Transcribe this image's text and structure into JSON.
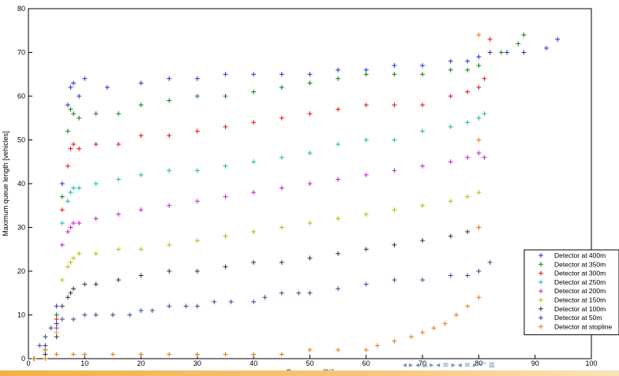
{
  "colors": {
    "400": "#1f2fd4",
    "350": "#0a7d12",
    "300": "#e01010",
    "250": "#15b5b5",
    "200": "#c21fc2",
    "150": "#b8b800",
    "100": "#303030",
    "50": "#2d4a8a",
    "stop": "#e07b00"
  },
  "chart_data": {
    "type": "scatter",
    "xlabel": "Occupancy [%]",
    "ylabel": "Maximum queue length [vehicles]",
    "xlim": [
      0,
      100
    ],
    "ylim": [
      0,
      80
    ],
    "xticks": [
      0,
      10,
      20,
      30,
      40,
      50,
      60,
      70,
      80,
      90,
      100
    ],
    "yticks": [
      0,
      10,
      20,
      30,
      40,
      50,
      60,
      70,
      80
    ],
    "xtick_labels": [
      "0",
      "10",
      "20",
      "30",
      "40",
      "50",
      "60",
      "70",
      "80",
      "90",
      "100"
    ],
    "ytick_labels": [
      "0",
      "10",
      "20",
      "30",
      "40",
      "50",
      "60",
      "70",
      "80"
    ],
    "grid": false,
    "legend_position": "bottom-right",
    "marker": "+",
    "series": [
      {
        "name": "Detector at 400m",
        "color": "#1f2fd4",
        "points": [
          [
            1,
            0
          ],
          [
            3,
            3
          ],
          [
            5,
            12
          ],
          [
            6,
            40
          ],
          [
            7,
            58
          ],
          [
            7.5,
            62
          ],
          [
            8,
            63
          ],
          [
            9,
            60
          ],
          [
            10,
            64
          ],
          [
            14,
            62
          ],
          [
            20,
            63
          ],
          [
            25,
            64
          ],
          [
            30,
            64
          ],
          [
            35,
            65
          ],
          [
            40,
            65
          ],
          [
            45,
            65
          ],
          [
            50,
            65
          ],
          [
            55,
            66
          ],
          [
            60,
            66
          ],
          [
            65,
            67
          ],
          [
            70,
            67
          ],
          [
            75,
            68
          ],
          [
            78,
            68
          ],
          [
            80,
            69
          ],
          [
            82,
            70
          ],
          [
            85,
            70
          ],
          [
            88,
            70
          ],
          [
            92,
            71
          ],
          [
            94,
            73
          ]
        ]
      },
      {
        "name": "Detector at 350m",
        "color": "#0a7d12",
        "points": [
          [
            1,
            0
          ],
          [
            3,
            2
          ],
          [
            5,
            10
          ],
          [
            6,
            37
          ],
          [
            7,
            52
          ],
          [
            7.5,
            57
          ],
          [
            8,
            56
          ],
          [
            9,
            55
          ],
          [
            12,
            56
          ],
          [
            16,
            56
          ],
          [
            20,
            58
          ],
          [
            25,
            59
          ],
          [
            30,
            60
          ],
          [
            35,
            60
          ],
          [
            40,
            61
          ],
          [
            45,
            62
          ],
          [
            50,
            63
          ],
          [
            55,
            64
          ],
          [
            60,
            65
          ],
          [
            65,
            65
          ],
          [
            70,
            65
          ],
          [
            75,
            66
          ],
          [
            78,
            66
          ],
          [
            80,
            67
          ],
          [
            84,
            70
          ],
          [
            87,
            72
          ],
          [
            88,
            74
          ]
        ]
      },
      {
        "name": "Detector at 300m",
        "color": "#e01010",
        "points": [
          [
            1,
            0
          ],
          [
            3,
            2
          ],
          [
            5,
            9
          ],
          [
            6,
            34
          ],
          [
            7,
            44
          ],
          [
            7.5,
            48
          ],
          [
            8,
            49
          ],
          [
            9,
            48
          ],
          [
            12,
            49
          ],
          [
            16,
            49
          ],
          [
            20,
            51
          ],
          [
            25,
            51
          ],
          [
            30,
            52
          ],
          [
            35,
            53
          ],
          [
            40,
            54
          ],
          [
            45,
            55
          ],
          [
            50,
            56
          ],
          [
            55,
            57
          ],
          [
            60,
            58
          ],
          [
            65,
            58
          ],
          [
            70,
            58
          ],
          [
            75,
            60
          ],
          [
            78,
            61
          ],
          [
            80,
            62
          ],
          [
            81,
            64
          ],
          [
            82,
            73
          ]
        ]
      },
      {
        "name": "Detector at 250m",
        "color": "#15b5b5",
        "points": [
          [
            1,
            0
          ],
          [
            3,
            2
          ],
          [
            5,
            8
          ],
          [
            6,
            31
          ],
          [
            7,
            36
          ],
          [
            7.5,
            38
          ],
          [
            8,
            39
          ],
          [
            9,
            39
          ],
          [
            12,
            40
          ],
          [
            16,
            41
          ],
          [
            20,
            42
          ],
          [
            25,
            43
          ],
          [
            30,
            43
          ],
          [
            35,
            44
          ],
          [
            40,
            45
          ],
          [
            45,
            46
          ],
          [
            50,
            47
          ],
          [
            55,
            49
          ],
          [
            60,
            50
          ],
          [
            65,
            50
          ],
          [
            70,
            52
          ],
          [
            75,
            53
          ],
          [
            78,
            54
          ],
          [
            80,
            55
          ],
          [
            81,
            56
          ]
        ]
      },
      {
        "name": "Detector at 200m",
        "color": "#c21fc2",
        "points": [
          [
            1,
            0
          ],
          [
            3,
            2
          ],
          [
            5,
            7
          ],
          [
            6,
            26
          ],
          [
            7,
            29
          ],
          [
            7.5,
            30
          ],
          [
            8,
            31
          ],
          [
            9,
            31
          ],
          [
            12,
            32
          ],
          [
            16,
            33
          ],
          [
            20,
            34
          ],
          [
            25,
            35
          ],
          [
            30,
            36
          ],
          [
            35,
            37
          ],
          [
            40,
            38
          ],
          [
            45,
            39
          ],
          [
            50,
            40
          ],
          [
            55,
            41
          ],
          [
            60,
            42
          ],
          [
            65,
            43
          ],
          [
            70,
            44
          ],
          [
            75,
            45
          ],
          [
            78,
            46
          ],
          [
            80,
            47
          ],
          [
            81,
            46
          ]
        ]
      },
      {
        "name": "Detector at 150m",
        "color": "#b8b800",
        "points": [
          [
            1,
            0
          ],
          [
            3,
            2
          ],
          [
            5,
            6
          ],
          [
            6,
            18
          ],
          [
            7,
            21
          ],
          [
            7.5,
            22
          ],
          [
            8,
            23
          ],
          [
            9,
            24
          ],
          [
            12,
            24
          ],
          [
            16,
            25
          ],
          [
            20,
            25
          ],
          [
            25,
            26
          ],
          [
            30,
            27
          ],
          [
            35,
            28
          ],
          [
            40,
            29
          ],
          [
            45,
            30
          ],
          [
            50,
            31
          ],
          [
            55,
            32
          ],
          [
            60,
            33
          ],
          [
            65,
            34
          ],
          [
            70,
            35
          ],
          [
            75,
            36
          ],
          [
            78,
            37
          ],
          [
            80,
            38
          ]
        ]
      },
      {
        "name": "Detector at 100m",
        "color": "#303030",
        "points": [
          [
            1,
            0
          ],
          [
            3,
            1
          ],
          [
            5,
            5
          ],
          [
            6,
            12
          ],
          [
            7,
            14
          ],
          [
            7.5,
            15
          ],
          [
            8,
            16
          ],
          [
            10,
            17
          ],
          [
            12,
            17
          ],
          [
            16,
            18
          ],
          [
            20,
            19
          ],
          [
            25,
            20
          ],
          [
            30,
            20
          ],
          [
            35,
            21
          ],
          [
            40,
            22
          ],
          [
            45,
            22
          ],
          [
            50,
            23
          ],
          [
            55,
            24
          ],
          [
            60,
            25
          ],
          [
            65,
            26
          ],
          [
            70,
            27
          ],
          [
            75,
            28
          ],
          [
            78,
            29
          ],
          [
            80,
            30
          ]
        ]
      },
      {
        "name": "Detector at 50m",
        "color": "#2d4a8a",
        "points": [
          [
            1,
            0
          ],
          [
            2,
            3
          ],
          [
            3,
            5
          ],
          [
            4,
            7
          ],
          [
            5,
            8
          ],
          [
            6,
            9
          ],
          [
            8,
            9
          ],
          [
            10,
            10
          ],
          [
            12,
            10
          ],
          [
            15,
            10
          ],
          [
            18,
            10
          ],
          [
            20,
            11
          ],
          [
            22,
            11
          ],
          [
            25,
            12
          ],
          [
            28,
            12
          ],
          [
            30,
            12
          ],
          [
            33,
            13
          ],
          [
            36,
            13
          ],
          [
            40,
            13
          ],
          [
            42,
            14
          ],
          [
            45,
            15
          ],
          [
            48,
            15
          ],
          [
            50,
            15
          ],
          [
            55,
            16
          ],
          [
            60,
            17
          ],
          [
            65,
            18
          ],
          [
            70,
            18
          ],
          [
            75,
            19
          ],
          [
            78,
            19
          ],
          [
            80,
            20
          ],
          [
            82,
            22
          ]
        ]
      },
      {
        "name": "Detector at stopline",
        "color": "#e07b00",
        "points": [
          [
            1,
            0
          ],
          [
            3,
            0
          ],
          [
            5,
            1
          ],
          [
            8,
            1
          ],
          [
            10,
            1
          ],
          [
            15,
            1
          ],
          [
            20,
            1
          ],
          [
            25,
            1
          ],
          [
            30,
            1
          ],
          [
            35,
            1
          ],
          [
            40,
            1
          ],
          [
            45,
            1
          ],
          [
            50,
            2
          ],
          [
            55,
            2
          ],
          [
            60,
            2
          ],
          [
            62,
            3
          ],
          [
            65,
            4
          ],
          [
            68,
            5
          ],
          [
            70,
            6
          ],
          [
            72,
            7
          ],
          [
            74,
            8
          ],
          [
            76,
            10
          ],
          [
            78,
            12
          ],
          [
            80,
            14
          ],
          [
            80,
            30
          ],
          [
            80,
            50
          ],
          [
            80,
            74
          ]
        ]
      }
    ]
  },
  "navigation": {
    "symbols": [
      "◂",
      "▸",
      "◂",
      "⧉",
      "▸",
      "◂",
      "≡",
      "▸",
      "◂",
      "≡",
      "▸",
      "↶",
      "≣"
    ]
  }
}
